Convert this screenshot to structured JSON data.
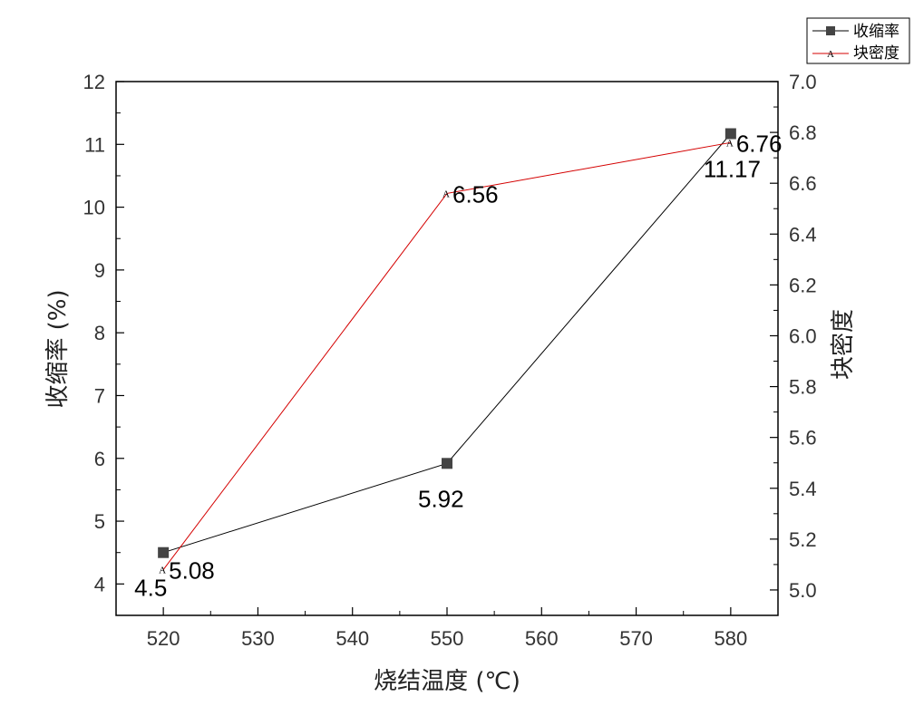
{
  "chart_data": {
    "type": "line",
    "title": "",
    "xlabel": "烧结温度 (℃)",
    "ylabel": "收缩率 (%)",
    "y2label": "块密度",
    "x": [
      520,
      550,
      580
    ],
    "xlim": [
      515,
      585
    ],
    "xticks": [
      "520",
      "530",
      "540",
      "550",
      "560",
      "570",
      "580"
    ],
    "ylim": [
      3.5,
      12
    ],
    "yticks": [
      "4",
      "5",
      "6",
      "7",
      "8",
      "9",
      "10",
      "11",
      "12"
    ],
    "y2lim": [
      4.9,
      7.0
    ],
    "y2ticks": [
      "5.0",
      "5.2",
      "5.4",
      "5.6",
      "5.8",
      "6.0",
      "6.2",
      "6.4",
      "6.6",
      "6.8",
      "7.0"
    ],
    "grid": false,
    "legend_position": "top-right",
    "series": [
      {
        "name": "收缩率",
        "axis": "left",
        "values": [
          4.5,
          5.92,
          11.17
        ],
        "labels": [
          "4.5",
          "5.92",
          "11.17"
        ],
        "color": "#000000",
        "marker": "square",
        "marker_color": "#444444"
      },
      {
        "name": "块密度",
        "axis": "right",
        "values": [
          5.08,
          6.56,
          6.76
        ],
        "labels": [
          "5.08",
          "6.56",
          "6.76"
        ],
        "color": "#d40000",
        "marker": "A"
      }
    ]
  }
}
